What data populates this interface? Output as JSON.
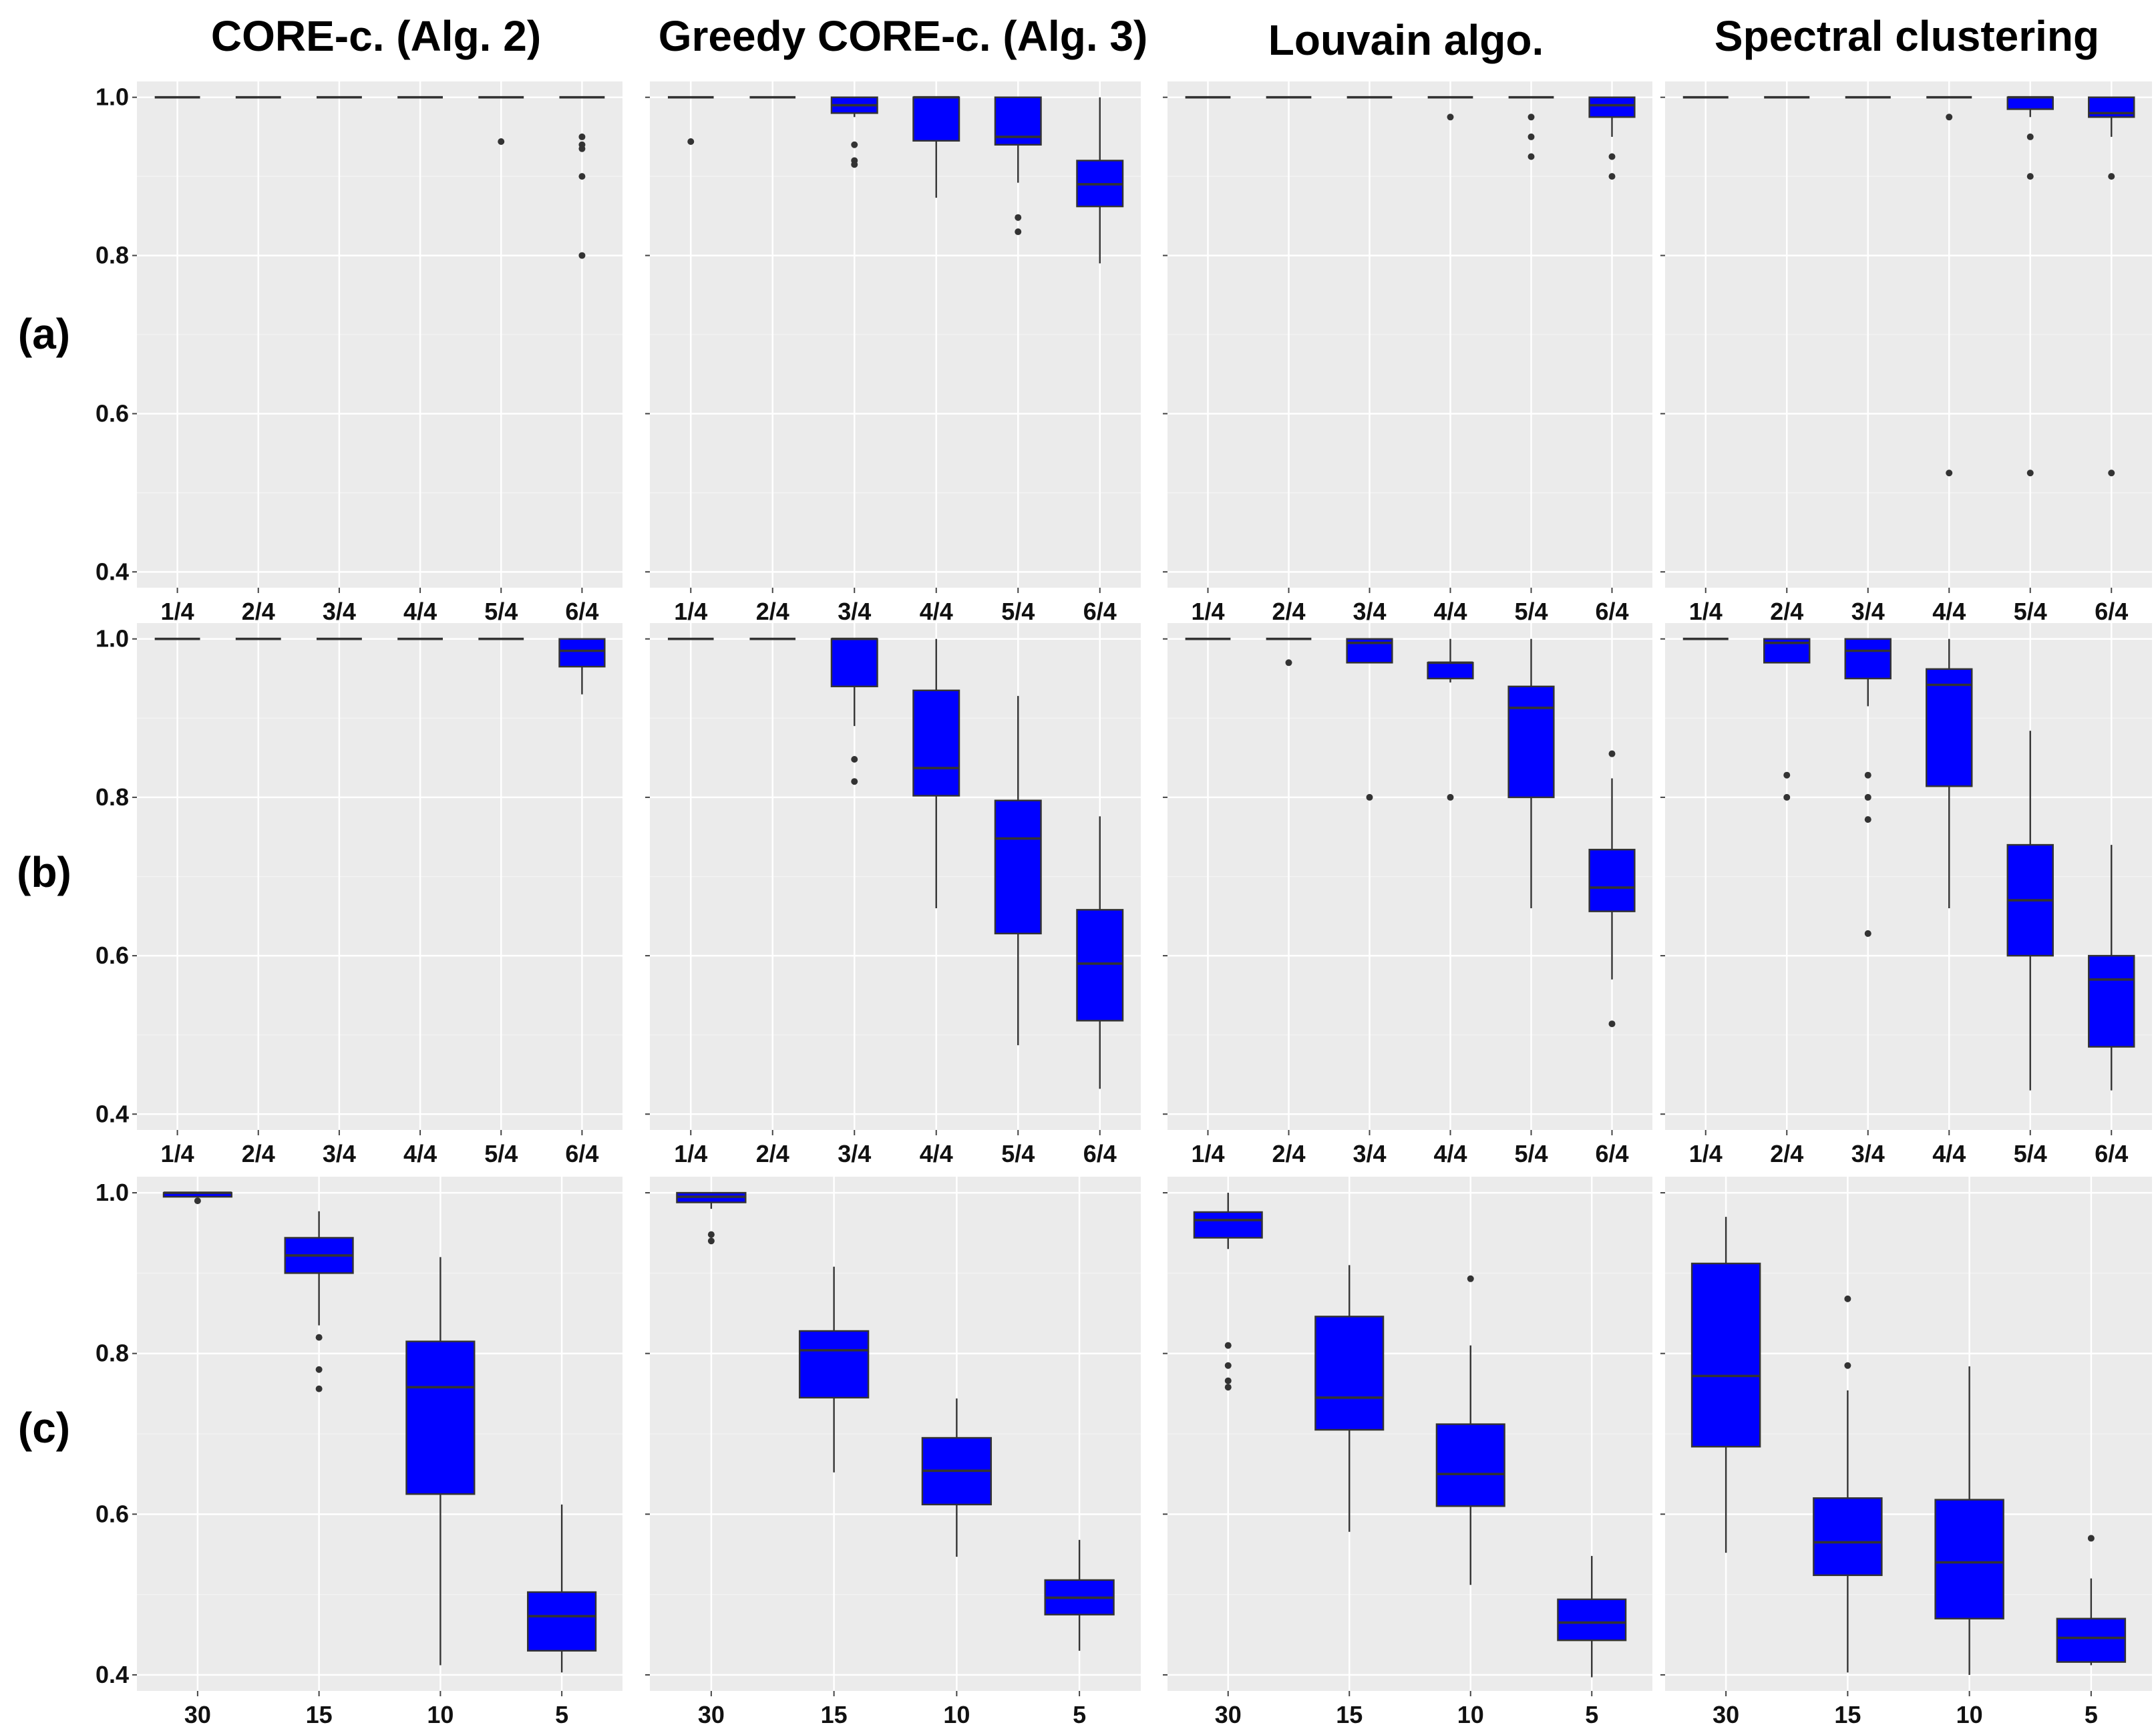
{
  "figure": {
    "column_titles": [
      "CORE-c. (Alg. 2)",
      "Greedy CORE-c. (Alg. 3)",
      "Louvain algo.",
      "Spectral clustering"
    ],
    "row_labels": [
      "(a)",
      "(b)",
      "(c)"
    ],
    "box_color": "#0000ff",
    "panel_background": "#ebebeb"
  },
  "chart_data": [
    {
      "type": "boxplot",
      "row": "(a)",
      "title": "CORE-c. (Alg. 2)",
      "ylim": [
        0.38,
        1.02
      ],
      "yticks": [
        0.4,
        0.6,
        0.8,
        1.0
      ],
      "ytick_labels": [
        "0.4",
        "0.6",
        "0.8",
        "1.0"
      ],
      "show_ytick_labels": true,
      "categories": [
        "1/4",
        "2/4",
        "3/4",
        "4/4",
        "5/4",
        "6/4"
      ],
      "boxes": [
        {
          "q1": 1.0,
          "median": 1.0,
          "q3": 1.0,
          "wlo": 1.0,
          "whi": 1.0,
          "outliers": []
        },
        {
          "q1": 1.0,
          "median": 1.0,
          "q3": 1.0,
          "wlo": 1.0,
          "whi": 1.0,
          "outliers": []
        },
        {
          "q1": 1.0,
          "median": 1.0,
          "q3": 1.0,
          "wlo": 1.0,
          "whi": 1.0,
          "outliers": []
        },
        {
          "q1": 1.0,
          "median": 1.0,
          "q3": 1.0,
          "wlo": 1.0,
          "whi": 1.0,
          "outliers": []
        },
        {
          "q1": 1.0,
          "median": 1.0,
          "q3": 1.0,
          "wlo": 1.0,
          "whi": 1.0,
          "outliers": [
            0.944
          ]
        },
        {
          "q1": 1.0,
          "median": 1.0,
          "q3": 1.0,
          "wlo": 1.0,
          "whi": 1.0,
          "outliers": [
            0.95,
            0.94,
            0.935,
            0.9,
            0.8
          ]
        }
      ]
    },
    {
      "type": "boxplot",
      "row": "(a)",
      "title": "Greedy CORE-c. (Alg. 3)",
      "ylim": [
        0.38,
        1.02
      ],
      "yticks": [
        0.4,
        0.6,
        0.8,
        1.0
      ],
      "ytick_labels": [
        "0.4",
        "0.6",
        "0.8",
        "1.0"
      ],
      "show_ytick_labels": false,
      "categories": [
        "1/4",
        "2/4",
        "3/4",
        "4/4",
        "5/4",
        "6/4"
      ],
      "boxes": [
        {
          "q1": 1.0,
          "median": 1.0,
          "q3": 1.0,
          "wlo": 1.0,
          "whi": 1.0,
          "outliers": [
            0.944
          ]
        },
        {
          "q1": 1.0,
          "median": 1.0,
          "q3": 1.0,
          "wlo": 1.0,
          "whi": 1.0,
          "outliers": []
        },
        {
          "q1": 0.98,
          "median": 0.99,
          "q3": 1.0,
          "wlo": 0.975,
          "whi": 1.0,
          "outliers": [
            0.94,
            0.92,
            0.915
          ]
        },
        {
          "q1": 0.945,
          "median": 1.0,
          "q3": 1.0,
          "wlo": 0.873,
          "whi": 1.0,
          "outliers": []
        },
        {
          "q1": 0.94,
          "median": 0.95,
          "q3": 1.0,
          "wlo": 0.892,
          "whi": 1.0,
          "outliers": [
            0.848,
            0.83
          ]
        },
        {
          "q1": 0.862,
          "median": 0.89,
          "q3": 0.92,
          "wlo": 0.79,
          "whi": 1.0,
          "outliers": []
        }
      ]
    },
    {
      "type": "boxplot",
      "row": "(a)",
      "title": "Louvain algo.",
      "ylim": [
        0.38,
        1.02
      ],
      "yticks": [
        0.4,
        0.6,
        0.8,
        1.0
      ],
      "ytick_labels": [
        "0.4",
        "0.6",
        "0.8",
        "1.0"
      ],
      "show_ytick_labels": false,
      "categories": [
        "1/4",
        "2/4",
        "3/4",
        "4/4",
        "5/4",
        "6/4"
      ],
      "boxes": [
        {
          "q1": 1.0,
          "median": 1.0,
          "q3": 1.0,
          "wlo": 1.0,
          "whi": 1.0,
          "outliers": []
        },
        {
          "q1": 1.0,
          "median": 1.0,
          "q3": 1.0,
          "wlo": 1.0,
          "whi": 1.0,
          "outliers": []
        },
        {
          "q1": 1.0,
          "median": 1.0,
          "q3": 1.0,
          "wlo": 1.0,
          "whi": 1.0,
          "outliers": []
        },
        {
          "q1": 1.0,
          "median": 1.0,
          "q3": 1.0,
          "wlo": 1.0,
          "whi": 1.0,
          "outliers": [
            0.975
          ]
        },
        {
          "q1": 1.0,
          "median": 1.0,
          "q3": 1.0,
          "wlo": 1.0,
          "whi": 1.0,
          "outliers": [
            0.975,
            0.95,
            0.925
          ]
        },
        {
          "q1": 0.975,
          "median": 0.99,
          "q3": 1.0,
          "wlo": 0.95,
          "whi": 1.0,
          "outliers": [
            0.925,
            0.9
          ]
        }
      ]
    },
    {
      "type": "boxplot",
      "row": "(a)",
      "title": "Spectral clustering",
      "ylim": [
        0.38,
        1.02
      ],
      "yticks": [
        0.4,
        0.6,
        0.8,
        1.0
      ],
      "ytick_labels": [
        "0.4",
        "0.6",
        "0.8",
        "1.0"
      ],
      "show_ytick_labels": false,
      "categories": [
        "1/4",
        "2/4",
        "3/4",
        "4/4",
        "5/4",
        "6/4"
      ],
      "boxes": [
        {
          "q1": 1.0,
          "median": 1.0,
          "q3": 1.0,
          "wlo": 1.0,
          "whi": 1.0,
          "outliers": []
        },
        {
          "q1": 1.0,
          "median": 1.0,
          "q3": 1.0,
          "wlo": 1.0,
          "whi": 1.0,
          "outliers": []
        },
        {
          "q1": 1.0,
          "median": 1.0,
          "q3": 1.0,
          "wlo": 1.0,
          "whi": 1.0,
          "outliers": []
        },
        {
          "q1": 1.0,
          "median": 1.0,
          "q3": 1.0,
          "wlo": 1.0,
          "whi": 1.0,
          "outliers": [
            0.975,
            0.525
          ]
        },
        {
          "q1": 0.985,
          "median": 1.0,
          "q3": 1.0,
          "wlo": 0.975,
          "whi": 1.0,
          "outliers": [
            0.95,
            0.9,
            0.525
          ]
        },
        {
          "q1": 0.975,
          "median": 0.98,
          "q3": 1.0,
          "wlo": 0.95,
          "whi": 1.0,
          "outliers": [
            0.9,
            0.525
          ]
        }
      ]
    },
    {
      "type": "boxplot",
      "row": "(b)",
      "title": "CORE-c. (Alg. 2)",
      "ylim": [
        0.38,
        1.02
      ],
      "yticks": [
        0.4,
        0.6,
        0.8,
        1.0
      ],
      "ytick_labels": [
        "0.4",
        "0.6",
        "0.8",
        "1.0"
      ],
      "show_ytick_labels": true,
      "categories": [
        "1/4",
        "2/4",
        "3/4",
        "4/4",
        "5/4",
        "6/4"
      ],
      "boxes": [
        {
          "q1": 1.0,
          "median": 1.0,
          "q3": 1.0,
          "wlo": 1.0,
          "whi": 1.0,
          "outliers": []
        },
        {
          "q1": 1.0,
          "median": 1.0,
          "q3": 1.0,
          "wlo": 1.0,
          "whi": 1.0,
          "outliers": []
        },
        {
          "q1": 1.0,
          "median": 1.0,
          "q3": 1.0,
          "wlo": 1.0,
          "whi": 1.0,
          "outliers": []
        },
        {
          "q1": 1.0,
          "median": 1.0,
          "q3": 1.0,
          "wlo": 1.0,
          "whi": 1.0,
          "outliers": []
        },
        {
          "q1": 1.0,
          "median": 1.0,
          "q3": 1.0,
          "wlo": 1.0,
          "whi": 1.0,
          "outliers": []
        },
        {
          "q1": 0.965,
          "median": 0.985,
          "q3": 1.0,
          "wlo": 0.93,
          "whi": 1.0,
          "outliers": []
        }
      ]
    },
    {
      "type": "boxplot",
      "row": "(b)",
      "title": "Greedy CORE-c. (Alg. 3)",
      "ylim": [
        0.38,
        1.02
      ],
      "yticks": [
        0.4,
        0.6,
        0.8,
        1.0
      ],
      "ytick_labels": [
        "0.4",
        "0.6",
        "0.8",
        "1.0"
      ],
      "show_ytick_labels": false,
      "categories": [
        "1/4",
        "2/4",
        "3/4",
        "4/4",
        "5/4",
        "6/4"
      ],
      "boxes": [
        {
          "q1": 1.0,
          "median": 1.0,
          "q3": 1.0,
          "wlo": 1.0,
          "whi": 1.0,
          "outliers": []
        },
        {
          "q1": 1.0,
          "median": 1.0,
          "q3": 1.0,
          "wlo": 1.0,
          "whi": 1.0,
          "outliers": []
        },
        {
          "q1": 0.94,
          "median": 1.0,
          "q3": 1.0,
          "wlo": 0.89,
          "whi": 1.0,
          "outliers": [
            0.848,
            0.82
          ]
        },
        {
          "q1": 0.802,
          "median": 0.837,
          "q3": 0.935,
          "wlo": 0.66,
          "whi": 1.0,
          "outliers": []
        },
        {
          "q1": 0.628,
          "median": 0.748,
          "q3": 0.796,
          "wlo": 0.487,
          "whi": 0.928,
          "outliers": []
        },
        {
          "q1": 0.518,
          "median": 0.59,
          "q3": 0.658,
          "wlo": 0.432,
          "whi": 0.776,
          "outliers": []
        }
      ]
    },
    {
      "type": "boxplot",
      "row": "(b)",
      "title": "Louvain algo.",
      "ylim": [
        0.38,
        1.02
      ],
      "yticks": [
        0.4,
        0.6,
        0.8,
        1.0
      ],
      "ytick_labels": [
        "0.4",
        "0.6",
        "0.8",
        "1.0"
      ],
      "show_ytick_labels": false,
      "categories": [
        "1/4",
        "2/4",
        "3/4",
        "4/4",
        "5/4",
        "6/4"
      ],
      "boxes": [
        {
          "q1": 1.0,
          "median": 1.0,
          "q3": 1.0,
          "wlo": 1.0,
          "whi": 1.0,
          "outliers": []
        },
        {
          "q1": 1.0,
          "median": 1.0,
          "q3": 1.0,
          "wlo": 1.0,
          "whi": 1.0,
          "outliers": [
            0.97
          ]
        },
        {
          "q1": 0.97,
          "median": 0.995,
          "q3": 1.0,
          "wlo": 0.97,
          "whi": 1.0,
          "outliers": [
            0.8
          ]
        },
        {
          "q1": 0.95,
          "median": 0.97,
          "q3": 0.97,
          "wlo": 0.945,
          "whi": 1.0,
          "outliers": [
            0.8
          ]
        },
        {
          "q1": 0.8,
          "median": 0.913,
          "q3": 0.94,
          "wlo": 0.66,
          "whi": 1.0,
          "outliers": []
        },
        {
          "q1": 0.656,
          "median": 0.686,
          "q3": 0.734,
          "wlo": 0.57,
          "whi": 0.824,
          "outliers": [
            0.855,
            0.514
          ]
        }
      ]
    },
    {
      "type": "boxplot",
      "row": "(b)",
      "title": "Spectral clustering",
      "ylim": [
        0.38,
        1.02
      ],
      "yticks": [
        0.4,
        0.6,
        0.8,
        1.0
      ],
      "ytick_labels": [
        "0.4",
        "0.6",
        "0.8",
        "1.0"
      ],
      "show_ytick_labels": false,
      "categories": [
        "1/4",
        "2/4",
        "3/4",
        "4/4",
        "5/4",
        "6/4"
      ],
      "boxes": [
        {
          "q1": 1.0,
          "median": 1.0,
          "q3": 1.0,
          "wlo": 1.0,
          "whi": 1.0,
          "outliers": []
        },
        {
          "q1": 0.97,
          "median": 0.995,
          "q3": 1.0,
          "wlo": 0.97,
          "whi": 1.0,
          "outliers": [
            0.828,
            0.8
          ]
        },
        {
          "q1": 0.95,
          "median": 0.985,
          "q3": 1.0,
          "wlo": 0.915,
          "whi": 1.0,
          "outliers": [
            0.828,
            0.8,
            0.772,
            0.628
          ]
        },
        {
          "q1": 0.814,
          "median": 0.942,
          "q3": 0.962,
          "wlo": 0.66,
          "whi": 1.0,
          "outliers": []
        },
        {
          "q1": 0.6,
          "median": 0.67,
          "q3": 0.74,
          "wlo": 0.43,
          "whi": 0.884,
          "outliers": []
        },
        {
          "q1": 0.485,
          "median": 0.57,
          "q3": 0.6,
          "wlo": 0.43,
          "whi": 0.74,
          "outliers": []
        }
      ]
    },
    {
      "type": "boxplot",
      "row": "(c)",
      "title": "CORE-c. (Alg. 2)",
      "ylim": [
        0.38,
        1.02
      ],
      "yticks": [
        0.4,
        0.6,
        0.8,
        1.0
      ],
      "ytick_labels": [
        "0.4",
        "0.6",
        "0.8",
        "1.0"
      ],
      "show_ytick_labels": true,
      "categories": [
        "30",
        "15",
        "10",
        "5"
      ],
      "boxes": [
        {
          "q1": 0.995,
          "median": 1.0,
          "q3": 1.0,
          "wlo": 0.995,
          "whi": 1.0,
          "outliers": [
            0.99
          ]
        },
        {
          "q1": 0.9,
          "median": 0.922,
          "q3": 0.944,
          "wlo": 0.835,
          "whi": 0.977,
          "outliers": [
            0.82,
            0.78,
            0.756
          ]
        },
        {
          "q1": 0.625,
          "median": 0.758,
          "q3": 0.815,
          "wlo": 0.412,
          "whi": 0.92,
          "outliers": []
        },
        {
          "q1": 0.43,
          "median": 0.473,
          "q3": 0.503,
          "wlo": 0.403,
          "whi": 0.612,
          "outliers": []
        }
      ]
    },
    {
      "type": "boxplot",
      "row": "(c)",
      "title": "Greedy CORE-c. (Alg. 3)",
      "ylim": [
        0.38,
        1.02
      ],
      "yticks": [
        0.4,
        0.6,
        0.8,
        1.0
      ],
      "ytick_labels": [
        "0.4",
        "0.6",
        "0.8",
        "1.0"
      ],
      "show_ytick_labels": false,
      "categories": [
        "30",
        "15",
        "10",
        "5"
      ],
      "boxes": [
        {
          "q1": 0.988,
          "median": 0.995,
          "q3": 1.0,
          "wlo": 0.98,
          "whi": 1.0,
          "outliers": [
            0.948,
            0.94
          ]
        },
        {
          "q1": 0.745,
          "median": 0.804,
          "q3": 0.828,
          "wlo": 0.652,
          "whi": 0.908,
          "outliers": []
        },
        {
          "q1": 0.612,
          "median": 0.654,
          "q3": 0.695,
          "wlo": 0.547,
          "whi": 0.744,
          "outliers": []
        },
        {
          "q1": 0.475,
          "median": 0.496,
          "q3": 0.518,
          "wlo": 0.43,
          "whi": 0.568,
          "outliers": []
        }
      ]
    },
    {
      "type": "boxplot",
      "row": "(c)",
      "title": "Louvain algo.",
      "ylim": [
        0.38,
        1.02
      ],
      "yticks": [
        0.4,
        0.6,
        0.8,
        1.0
      ],
      "ytick_labels": [
        "0.4",
        "0.6",
        "0.8",
        "1.0"
      ],
      "show_ytick_labels": false,
      "categories": [
        "30",
        "15",
        "10",
        "5"
      ],
      "boxes": [
        {
          "q1": 0.944,
          "median": 0.966,
          "q3": 0.976,
          "wlo": 0.93,
          "whi": 1.0,
          "outliers": [
            0.81,
            0.785,
            0.766,
            0.758
          ]
        },
        {
          "q1": 0.705,
          "median": 0.745,
          "q3": 0.846,
          "wlo": 0.578,
          "whi": 0.91,
          "outliers": []
        },
        {
          "q1": 0.61,
          "median": 0.65,
          "q3": 0.712,
          "wlo": 0.512,
          "whi": 0.81,
          "outliers": [
            0.893
          ]
        },
        {
          "q1": 0.443,
          "median": 0.465,
          "q3": 0.494,
          "wlo": 0.397,
          "whi": 0.548,
          "outliers": []
        }
      ]
    },
    {
      "type": "boxplot",
      "row": "(c)",
      "title": "Spectral clustering",
      "ylim": [
        0.38,
        1.02
      ],
      "yticks": [
        0.4,
        0.6,
        0.8,
        1.0
      ],
      "ytick_labels": [
        "0.4",
        "0.6",
        "0.8",
        "1.0"
      ],
      "show_ytick_labels": false,
      "categories": [
        "30",
        "15",
        "10",
        "5"
      ],
      "boxes": [
        {
          "q1": 0.684,
          "median": 0.772,
          "q3": 0.912,
          "wlo": 0.552,
          "whi": 0.97,
          "outliers": []
        },
        {
          "q1": 0.524,
          "median": 0.565,
          "q3": 0.62,
          "wlo": 0.403,
          "whi": 0.754,
          "outliers": [
            0.868,
            0.785
          ]
        },
        {
          "q1": 0.47,
          "median": 0.54,
          "q3": 0.618,
          "wlo": 0.4,
          "whi": 0.784,
          "outliers": []
        },
        {
          "q1": 0.416,
          "median": 0.446,
          "q3": 0.47,
          "wlo": 0.412,
          "whi": 0.52,
          "outliers": [
            0.57
          ]
        }
      ]
    }
  ]
}
